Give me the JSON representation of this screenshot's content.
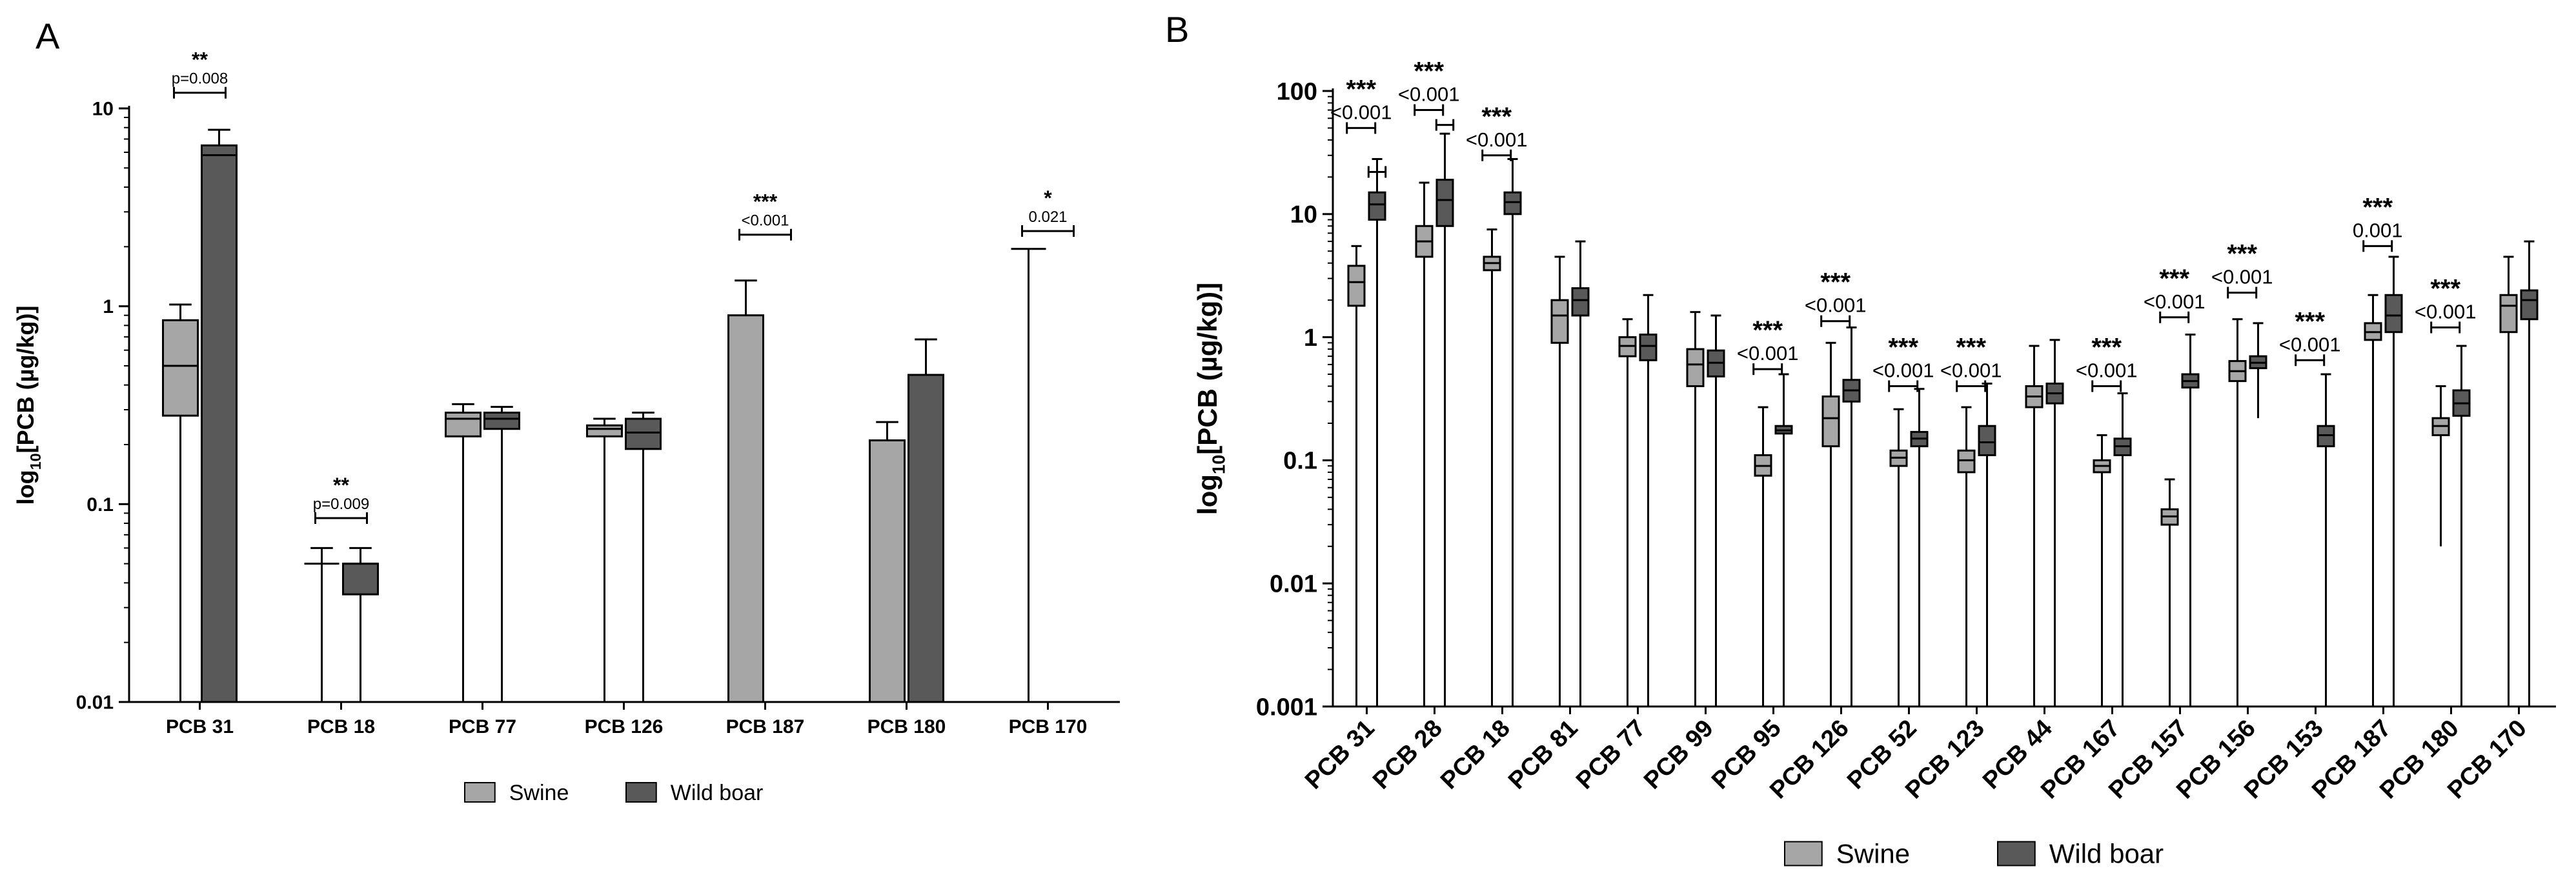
{
  "colors": {
    "swine": "#a6a6a6",
    "wild_boar": "#595959",
    "axis": "#000000"
  },
  "chart_data": [
    {
      "type": "bar",
      "panel_label": "A",
      "scale": "log",
      "ylabel_main": "log",
      "ylabel_sub": "10",
      "ylabel_rest": "[PCB (µg/kg)]",
      "ylim": [
        0.01,
        10
      ],
      "yticks": [
        {
          "v": 0.01,
          "label": "0.01"
        },
        {
          "v": 0.1,
          "label": "0.1"
        },
        {
          "v": 1,
          "label": "1"
        },
        {
          "v": 10,
          "label": "10"
        }
      ],
      "categories": [
        "PCB 31",
        "PCB 18",
        "PCB 77",
        "PCB 126",
        "PCB 187",
        "PCB 180",
        "PCB 170"
      ],
      "legend": {
        "labels": [
          "Swine",
          "Wild boar"
        ],
        "position": "bottom-center"
      },
      "series": [
        {
          "name": "Swine",
          "color": "#a6a6a6",
          "values": [
            {
              "mode": "box",
              "min": 0.01,
              "q1": 0.28,
              "median": 0.5,
              "q3": 0.85,
              "max": 1.02
            },
            {
              "mode": "line",
              "value": 0.05,
              "max": 0.06
            },
            {
              "mode": "box",
              "min": 0.01,
              "q1": 0.22,
              "median": 0.27,
              "q3": 0.29,
              "max": 0.32
            },
            {
              "mode": "box",
              "min": 0.01,
              "q1": 0.22,
              "median": 0.24,
              "q3": 0.25,
              "max": 0.27
            },
            {
              "mode": "bar",
              "value": 0.9,
              "max": 1.35
            },
            {
              "mode": "bar",
              "value": 0.21,
              "max": 0.26
            },
            {
              "mode": "line",
              "value": 1.95
            }
          ]
        },
        {
          "name": "Wild boar",
          "color": "#595959",
          "values": [
            {
              "mode": "box",
              "min": 0.01,
              "q1": 0.01,
              "median": 5.8,
              "q3": 6.5,
              "max": 7.8
            },
            {
              "mode": "box",
              "min": 0.01,
              "q1": 0.035,
              "median": 0.05,
              "q3": 0.05,
              "max": 0.06
            },
            {
              "mode": "box",
              "min": 0.01,
              "q1": 0.24,
              "median": 0.27,
              "q3": 0.29,
              "max": 0.31
            },
            {
              "mode": "box",
              "min": 0.01,
              "q1": 0.19,
              "median": 0.23,
              "q3": 0.27,
              "max": 0.29
            },
            {
              "mode": "none"
            },
            {
              "mode": "bar",
              "value": 0.45,
              "max": 0.68
            },
            {
              "mode": "none"
            }
          ]
        }
      ],
      "annotations": [
        {
          "cat": 0,
          "stars": "**",
          "p": "p=0.008",
          "y": 12.0
        },
        {
          "cat": 1,
          "stars": "**",
          "p": "p=0.009",
          "y": 0.085
        },
        {
          "cat": 4,
          "stars": "***",
          "p": "<0.001",
          "y": 2.3
        },
        {
          "cat": 6,
          "stars": "*",
          "p": "0.021",
          "y": 2.4
        }
      ]
    },
    {
      "type": "box",
      "panel_label": "B",
      "scale": "log",
      "ylabel_main": "log",
      "ylabel_sub": "10",
      "ylabel_rest": "[PCB (µg/kg)]",
      "ylim": [
        0.001,
        100
      ],
      "yticks": [
        {
          "v": 0.001,
          "label": "0.001"
        },
        {
          "v": 0.01,
          "label": "0.01"
        },
        {
          "v": 0.1,
          "label": "0.1"
        },
        {
          "v": 1,
          "label": "1"
        },
        {
          "v": 10,
          "label": "10"
        },
        {
          "v": 100,
          "label": "100"
        }
      ],
      "categories": [
        "PCB 31",
        "PCB 28",
        "PCB 18",
        "PCB 81",
        "PCB 77",
        "PCB 99",
        "PCB 95",
        "PCB 126",
        "PCB 52",
        "PCB 123",
        "PCB 44",
        "PCB 167",
        "PCB 157",
        "PCB 156",
        "PCB 153",
        "PCB 187",
        "PCB 180",
        "PCB 170"
      ],
      "legend": {
        "labels": [
          "Swine",
          "Wild boar"
        ],
        "position": "bottom-center"
      },
      "series": [
        {
          "name": "Swine",
          "color": "#a6a6a6",
          "values": [
            {
              "min": 0.001,
              "q1": 1.8,
              "median": 2.8,
              "q3": 3.8,
              "max": 5.5
            },
            {
              "min": 0.001,
              "q1": 4.5,
              "median": 6.0,
              "q3": 8.0,
              "max": 18
            },
            {
              "min": 0.001,
              "q1": 3.5,
              "median": 4.0,
              "q3": 4.5,
              "max": 7.5
            },
            {
              "min": 0.001,
              "q1": 0.9,
              "median": 1.5,
              "q3": 2.0,
              "max": 4.5
            },
            {
              "min": 0.001,
              "q1": 0.7,
              "median": 0.85,
              "q3": 1.0,
              "max": 1.4
            },
            {
              "min": 0.001,
              "q1": 0.4,
              "median": 0.6,
              "q3": 0.8,
              "max": 1.6
            },
            {
              "min": 0.001,
              "q1": 0.075,
              "median": 0.09,
              "q3": 0.11,
              "max": 0.27
            },
            {
              "min": 0.001,
              "q1": 0.13,
              "median": 0.22,
              "q3": 0.33,
              "max": 0.9
            },
            {
              "min": 0.001,
              "q1": 0.09,
              "median": 0.105,
              "q3": 0.12,
              "max": 0.26
            },
            {
              "min": 0.001,
              "q1": 0.08,
              "median": 0.1,
              "q3": 0.12,
              "max": 0.27
            },
            {
              "min": 0.001,
              "q1": 0.27,
              "median": 0.33,
              "q3": 0.4,
              "max": 0.85
            },
            {
              "min": 0.001,
              "q1": 0.08,
              "median": 0.09,
              "q3": 0.1,
              "max": 0.16
            },
            {
              "min": 0.001,
              "q1": 0.03,
              "median": 0.035,
              "q3": 0.04,
              "max": 0.07
            },
            {
              "min": 0.001,
              "q1": 0.44,
              "median": 0.53,
              "q3": 0.64,
              "max": 1.4
            },
            {
              "mode": "none"
            },
            {
              "min": 0.001,
              "q1": 0.95,
              "median": 1.1,
              "q3": 1.3,
              "max": 2.2
            },
            {
              "min": 0.02,
              "q1": 0.16,
              "median": 0.19,
              "q3": 0.22,
              "max": 0.4
            },
            {
              "min": 0.001,
              "q1": 1.1,
              "median": 1.8,
              "q3": 2.2,
              "max": 4.5
            }
          ]
        },
        {
          "name": "Wild boar",
          "color": "#595959",
          "values": [
            {
              "min": 0.001,
              "q1": 9.0,
              "median": 12.0,
              "q3": 15.0,
              "max": 28
            },
            {
              "min": 0.001,
              "q1": 8.0,
              "median": 13.0,
              "q3": 19.0,
              "max": 45
            },
            {
              "min": 0.001,
              "q1": 10.0,
              "median": 12.5,
              "q3": 15.0,
              "max": 28
            },
            {
              "min": 0.001,
              "q1": 1.5,
              "median": 2.0,
              "q3": 2.5,
              "max": 6.0
            },
            {
              "min": 0.001,
              "q1": 0.65,
              "median": 0.85,
              "q3": 1.05,
              "max": 2.2
            },
            {
              "min": 0.001,
              "q1": 0.48,
              "median": 0.62,
              "q3": 0.78,
              "max": 1.5
            },
            {
              "min": 0.001,
              "q1": 0.165,
              "median": 0.175,
              "q3": 0.19,
              "max": 0.5
            },
            {
              "min": 0.001,
              "q1": 0.3,
              "median": 0.37,
              "q3": 0.45,
              "max": 1.2
            },
            {
              "min": 0.001,
              "q1": 0.13,
              "median": 0.15,
              "q3": 0.17,
              "max": 0.38
            },
            {
              "min": 0.001,
              "q1": 0.11,
              "median": 0.14,
              "q3": 0.19,
              "max": 0.42
            },
            {
              "min": 0.001,
              "q1": 0.29,
              "median": 0.35,
              "q3": 0.42,
              "max": 0.95
            },
            {
              "min": 0.001,
              "q1": 0.11,
              "median": 0.13,
              "q3": 0.15,
              "max": 0.35
            },
            {
              "min": 0.001,
              "q1": 0.39,
              "median": 0.44,
              "q3": 0.5,
              "max": 1.05
            },
            {
              "min": 0.22,
              "q1": 0.56,
              "median": 0.62,
              "q3": 0.7,
              "max": 1.3
            },
            {
              "min": 0.001,
              "q1": 0.13,
              "median": 0.16,
              "q3": 0.19,
              "max": 0.5
            },
            {
              "min": 0.001,
              "q1": 1.1,
              "median": 1.5,
              "q3": 2.2,
              "max": 4.5
            },
            {
              "min": 0.001,
              "q1": 0.23,
              "median": 0.29,
              "q3": 0.37,
              "max": 0.85
            },
            {
              "min": 0.001,
              "q1": 1.4,
              "median": 2.0,
              "q3": 2.4,
              "max": 6.0
            }
          ]
        }
      ],
      "annotations": [
        {
          "cat": 0,
          "stars": "***",
          "p": "<0.001",
          "y": 50,
          "pos": "pair"
        },
        {
          "cat": 0,
          "stars": "",
          "p": "",
          "y": 22,
          "pos": "wild"
        },
        {
          "cat": 1,
          "stars": "***",
          "p": "<0.001",
          "y": 70,
          "pos": "pair"
        },
        {
          "cat": 1,
          "stars": "",
          "p": "",
          "y": 53,
          "pos": "wild"
        },
        {
          "cat": 2,
          "stars": "***",
          "p": "<0.001",
          "y": 30,
          "pos": "pair"
        },
        {
          "cat": 6,
          "stars": "***",
          "p": "<0.001",
          "y": 0.55,
          "pos": "pair"
        },
        {
          "cat": 7,
          "stars": "***",
          "p": "<0.001",
          "y": 1.35,
          "pos": "pair"
        },
        {
          "cat": 8,
          "stars": "***",
          "p": "<0.001",
          "y": 0.4,
          "pos": "pair"
        },
        {
          "cat": 9,
          "stars": "***",
          "p": "<0.001",
          "y": 0.4,
          "pos": "pair"
        },
        {
          "cat": 11,
          "stars": "***",
          "p": "<0.001",
          "y": 0.4,
          "pos": "pair"
        },
        {
          "cat": 12,
          "stars": "***",
          "p": "<0.001",
          "y": 1.45,
          "pos": "pair"
        },
        {
          "cat": 13,
          "stars": "***",
          "p": "<0.001",
          "y": 2.3,
          "pos": "pair"
        },
        {
          "cat": 14,
          "stars": "***",
          "p": "<0.001",
          "y": 0.65,
          "pos": "pair"
        },
        {
          "cat": 15,
          "stars": "***",
          "p": "0.001",
          "y": 5.5,
          "pos": "pair"
        },
        {
          "cat": 16,
          "stars": "***",
          "p": "<0.001",
          "y": 1.2,
          "pos": "pair"
        }
      ]
    }
  ]
}
